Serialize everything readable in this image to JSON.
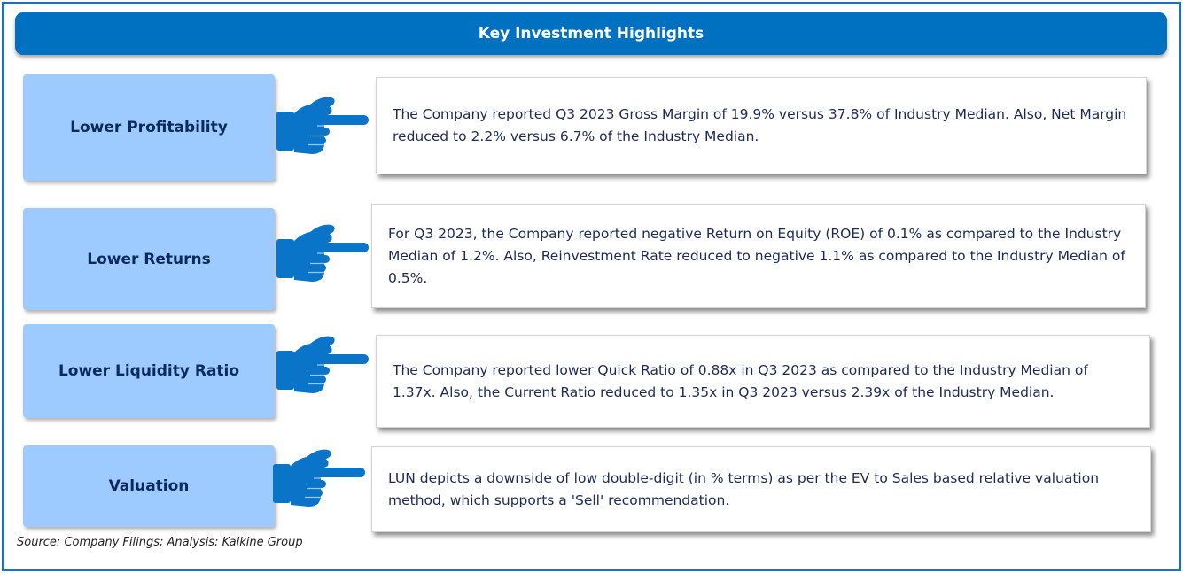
{
  "title": "Key Investment Highlights",
  "highlights": [
    {
      "label": "Lower Profitability",
      "text": "The Company reported Q3 2023  Gross Margin of 19.9% versus 37.8% of Industry Median. Also, Net Margin reduced to 2.2% versus 6.7% of the Industry Median."
    },
    {
      "label": "Lower Returns",
      "text": "For Q3 2023, the Company reported  negative Return on Equity (ROE) of  0.1%  as compared to the Industry Median of 1.2%. Also, Reinvestment Rate reduced to negative 1.1% as compared to the Industry Median of 0.5%."
    },
    {
      "label": "Lower Liquidity Ratio",
      "text": "The Company reported lower Quick Ratio of 0.88x in Q3 2023 as compared to the Industry Median of 1.37x. Also, the Current Ratio reduced to 1.35x in Q3 2023 versus 2.39x of the Industry Median."
    },
    {
      "label": "Valuation",
      "text": "LUN  depicts a downside of low double-digit (in % terms) as per the EV to Sales  based relative valuation method, which supports a 'Sell' recommendation."
    }
  ],
  "source": "Source: Company Filings; Analysis: Kalkine Group",
  "icon": "pointing-hand-icon",
  "colors": {
    "header": "#0070c0",
    "label_box": "#9dcbff",
    "hand": "#0a74c9",
    "text": "#1d2a55"
  }
}
